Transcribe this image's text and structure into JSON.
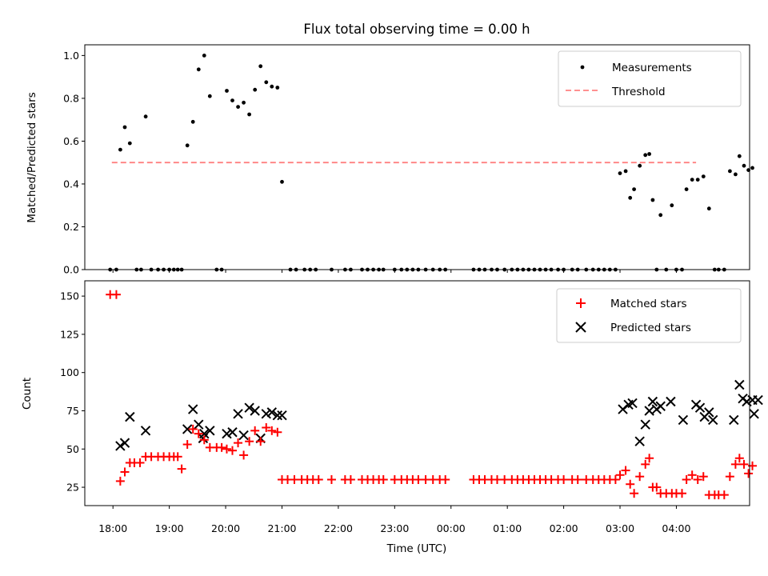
{
  "title": "Flux total observing time = 0.00 h",
  "chart_data": [
    {
      "type": "scatter",
      "ylabel": "Matched/Predicted stars",
      "xlabel": "",
      "xlim": [
        -0.5,
        11.3
      ],
      "ylim": [
        0,
        1.05
      ],
      "yticks": [
        0.0,
        0.2,
        0.4,
        0.6,
        0.8,
        1.0
      ],
      "ytick_labels": [
        "0.0",
        "0.2",
        "0.4",
        "0.6",
        "0.8",
        "1.0"
      ],
      "grid": false,
      "legend_position": "top-right",
      "threshold": {
        "name": "Threshold",
        "y": 0.5,
        "x_start": -0.02,
        "x_end": 10.35,
        "color": "#ff8080"
      },
      "series": [
        {
          "name": "Measurements",
          "color": "#000000",
          "points": [
            [
              -0.05,
              0
            ],
            [
              0.06,
              0
            ],
            [
              0.13,
              0.56
            ],
            [
              0.21,
              0.665
            ],
            [
              0.3,
              0.59
            ],
            [
              0.42,
              0
            ],
            [
              0.5,
              0
            ],
            [
              0.58,
              0.715
            ],
            [
              0.68,
              0
            ],
            [
              0.8,
              0
            ],
            [
              0.9,
              0
            ],
            [
              1.0,
              0
            ],
            [
              1.08,
              0
            ],
            [
              1.15,
              0
            ],
            [
              1.22,
              0
            ],
            [
              1.32,
              0.58
            ],
            [
              1.42,
              0.69
            ],
            [
              1.52,
              0.935
            ],
            [
              1.62,
              1.0
            ],
            [
              1.72,
              0.81
            ],
            [
              1.84,
              0
            ],
            [
              1.93,
              0
            ],
            [
              2.02,
              0.835
            ],
            [
              2.12,
              0.79
            ],
            [
              2.22,
              0.76
            ],
            [
              2.32,
              0.78
            ],
            [
              2.42,
              0.725
            ],
            [
              2.52,
              0.84
            ],
            [
              2.62,
              0.95
            ],
            [
              2.72,
              0.875
            ],
            [
              2.82,
              0.855
            ],
            [
              2.92,
              0.85
            ],
            [
              3.0,
              0.41
            ],
            [
              3.15,
              0
            ],
            [
              3.25,
              0
            ],
            [
              3.4,
              0
            ],
            [
              3.5,
              0
            ],
            [
              3.6,
              0
            ],
            [
              3.88,
              0
            ],
            [
              4.12,
              0
            ],
            [
              4.22,
              0
            ],
            [
              4.42,
              0
            ],
            [
              4.52,
              0
            ],
            [
              4.62,
              0
            ],
            [
              4.72,
              0
            ],
            [
              4.8,
              0
            ],
            [
              5.0,
              0
            ],
            [
              5.12,
              0
            ],
            [
              5.22,
              0
            ],
            [
              5.32,
              0
            ],
            [
              5.42,
              0
            ],
            [
              5.55,
              0
            ],
            [
              5.68,
              0
            ],
            [
              5.8,
              0
            ],
            [
              5.9,
              0
            ],
            [
              6.4,
              0
            ],
            [
              6.5,
              0
            ],
            [
              6.6,
              0
            ],
            [
              6.72,
              0
            ],
            [
              6.82,
              0
            ],
            [
              6.95,
              0
            ],
            [
              7.08,
              0
            ],
            [
              7.18,
              0
            ],
            [
              7.28,
              0
            ],
            [
              7.38,
              0
            ],
            [
              7.48,
              0
            ],
            [
              7.58,
              0
            ],
            [
              7.68,
              0
            ],
            [
              7.78,
              0
            ],
            [
              7.9,
              0
            ],
            [
              8.0,
              0
            ],
            [
              8.15,
              0
            ],
            [
              8.25,
              0
            ],
            [
              8.4,
              0
            ],
            [
              8.52,
              0
            ],
            [
              8.62,
              0
            ],
            [
              8.72,
              0
            ],
            [
              8.82,
              0
            ],
            [
              8.92,
              0
            ],
            [
              9.0,
              0.45
            ],
            [
              9.1,
              0.46
            ],
            [
              9.18,
              0.335
            ],
            [
              9.25,
              0.375
            ],
            [
              9.35,
              0.485
            ],
            [
              9.45,
              0.535
            ],
            [
              9.52,
              0.54
            ],
            [
              9.58,
              0.325
            ],
            [
              9.65,
              0
            ],
            [
              9.72,
              0.255
            ],
            [
              9.82,
              0
            ],
            [
              9.92,
              0.3
            ],
            [
              10.0,
              0
            ],
            [
              10.1,
              0
            ],
            [
              10.18,
              0.375
            ],
            [
              10.28,
              0.42
            ],
            [
              10.38,
              0.42
            ],
            [
              10.48,
              0.435
            ],
            [
              10.58,
              0.285
            ],
            [
              10.68,
              0
            ],
            [
              10.75,
              0
            ],
            [
              10.85,
              0
            ],
            [
              10.95,
              0.46
            ],
            [
              11.05,
              0.445
            ],
            [
              11.12,
              0.53
            ],
            [
              11.2,
              0.485
            ],
            [
              11.28,
              0.465
            ],
            [
              11.35,
              0.475
            ]
          ]
        }
      ]
    },
    {
      "type": "scatter",
      "ylabel": "Count",
      "xlabel": "Time (UTC)",
      "xlim": [
        -0.5,
        11.3
      ],
      "ylim": [
        13,
        160
      ],
      "yticks": [
        25,
        50,
        75,
        100,
        125,
        150
      ],
      "ytick_labels": [
        "25",
        "50",
        "75",
        "100",
        "125",
        "150"
      ],
      "xticks": [
        0,
        1,
        2,
        3,
        4,
        5,
        6,
        7,
        8,
        9,
        10
      ],
      "xtick_labels": [
        "18:00",
        "19:00",
        "20:00",
        "21:00",
        "22:00",
        "23:00",
        "00:00",
        "01:00",
        "02:00",
        "03:00",
        "04:00"
      ],
      "grid": false,
      "legend_position": "top-right",
      "series": [
        {
          "name": "Matched stars",
          "marker": "+",
          "color": "#ff0000",
          "points": [
            [
              -0.05,
              151
            ],
            [
              0.06,
              151
            ],
            [
              0.13,
              29
            ],
            [
              0.21,
              35
            ],
            [
              0.3,
              41
            ],
            [
              0.38,
              41
            ],
            [
              0.48,
              41
            ],
            [
              0.58,
              45
            ],
            [
              0.68,
              45
            ],
            [
              0.8,
              45
            ],
            [
              0.9,
              45
            ],
            [
              1.0,
              45
            ],
            [
              1.08,
              45
            ],
            [
              1.15,
              45
            ],
            [
              1.22,
              37
            ],
            [
              1.32,
              53
            ],
            [
              1.42,
              63
            ],
            [
              1.52,
              60
            ],
            [
              1.62,
              56
            ],
            [
              1.72,
              51
            ],
            [
              1.84,
              51
            ],
            [
              1.93,
              51
            ],
            [
              2.02,
              50
            ],
            [
              2.12,
              49
            ],
            [
              2.22,
              54
            ],
            [
              2.32,
              46
            ],
            [
              2.42,
              55
            ],
            [
              2.52,
              62
            ],
            [
              2.62,
              55
            ],
            [
              2.72,
              64
            ],
            [
              2.82,
              62
            ],
            [
              2.92,
              61
            ],
            [
              3.0,
              30
            ],
            [
              3.1,
              30
            ],
            [
              3.22,
              30
            ],
            [
              3.35,
              30
            ],
            [
              3.45,
              30
            ],
            [
              3.55,
              30
            ],
            [
              3.65,
              30
            ],
            [
              3.88,
              30
            ],
            [
              4.12,
              30
            ],
            [
              4.22,
              30
            ],
            [
              4.42,
              30
            ],
            [
              4.52,
              30
            ],
            [
              4.62,
              30
            ],
            [
              4.72,
              30
            ],
            [
              4.8,
              30
            ],
            [
              5.0,
              30
            ],
            [
              5.12,
              30
            ],
            [
              5.22,
              30
            ],
            [
              5.32,
              30
            ],
            [
              5.42,
              30
            ],
            [
              5.55,
              30
            ],
            [
              5.68,
              30
            ],
            [
              5.8,
              30
            ],
            [
              5.9,
              30
            ],
            [
              6.4,
              30
            ],
            [
              6.5,
              30
            ],
            [
              6.6,
              30
            ],
            [
              6.72,
              30
            ],
            [
              6.82,
              30
            ],
            [
              6.95,
              30
            ],
            [
              7.08,
              30
            ],
            [
              7.18,
              30
            ],
            [
              7.28,
              30
            ],
            [
              7.38,
              30
            ],
            [
              7.48,
              30
            ],
            [
              7.58,
              30
            ],
            [
              7.68,
              30
            ],
            [
              7.78,
              30
            ],
            [
              7.9,
              30
            ],
            [
              8.0,
              30
            ],
            [
              8.15,
              30
            ],
            [
              8.25,
              30
            ],
            [
              8.4,
              30
            ],
            [
              8.52,
              30
            ],
            [
              8.62,
              30
            ],
            [
              8.72,
              30
            ],
            [
              8.82,
              30
            ],
            [
              8.92,
              30
            ],
            [
              9.0,
              33
            ],
            [
              9.1,
              36
            ],
            [
              9.18,
              27
            ],
            [
              9.25,
              21
            ],
            [
              9.35,
              32
            ],
            [
              9.45,
              40
            ],
            [
              9.52,
              44
            ],
            [
              9.58,
              25
            ],
            [
              9.65,
              25
            ],
            [
              9.72,
              21
            ],
            [
              9.82,
              21
            ],
            [
              9.92,
              21
            ],
            [
              10.0,
              21
            ],
            [
              10.1,
              21
            ],
            [
              10.18,
              30
            ],
            [
              10.28,
              33
            ],
            [
              10.38,
              30
            ],
            [
              10.48,
              32
            ],
            [
              10.58,
              20
            ],
            [
              10.68,
              20
            ],
            [
              10.75,
              20
            ],
            [
              10.85,
              20
            ],
            [
              10.95,
              32
            ],
            [
              11.05,
              40
            ],
            [
              11.12,
              44
            ],
            [
              11.2,
              40
            ],
            [
              11.28,
              34
            ],
            [
              11.35,
              39
            ]
          ]
        },
        {
          "name": "Predicted stars",
          "marker": "x",
          "color": "#000000",
          "points": [
            [
              0.13,
              52
            ],
            [
              0.21,
              54
            ],
            [
              0.3,
              71
            ],
            [
              0.58,
              62
            ],
            [
              1.32,
              63
            ],
            [
              1.42,
              76
            ],
            [
              1.52,
              66
            ],
            [
              1.6,
              57
            ],
            [
              1.62,
              60
            ],
            [
              1.72,
              62
            ],
            [
              2.02,
              60
            ],
            [
              2.12,
              61
            ],
            [
              2.22,
              73
            ],
            [
              2.32,
              59
            ],
            [
              2.42,
              77
            ],
            [
              2.52,
              75
            ],
            [
              2.62,
              57
            ],
            [
              2.72,
              73
            ],
            [
              2.82,
              74
            ],
            [
              2.92,
              72
            ],
            [
              3.0,
              72
            ],
            [
              9.05,
              76
            ],
            [
              9.15,
              79
            ],
            [
              9.22,
              80
            ],
            [
              9.35,
              55
            ],
            [
              9.45,
              66
            ],
            [
              9.52,
              75
            ],
            [
              9.58,
              81
            ],
            [
              9.65,
              76
            ],
            [
              9.72,
              78
            ],
            [
              9.9,
              81
            ],
            [
              10.12,
              69
            ],
            [
              10.35,
              79
            ],
            [
              10.42,
              77
            ],
            [
              10.5,
              71
            ],
            [
              10.58,
              74
            ],
            [
              10.65,
              69
            ],
            [
              11.02,
              69
            ],
            [
              11.12,
              92
            ],
            [
              11.18,
              83
            ],
            [
              11.25,
              81
            ],
            [
              11.35,
              82
            ],
            [
              11.38,
              73
            ],
            [
              11.45,
              82
            ]
          ]
        }
      ]
    }
  ]
}
